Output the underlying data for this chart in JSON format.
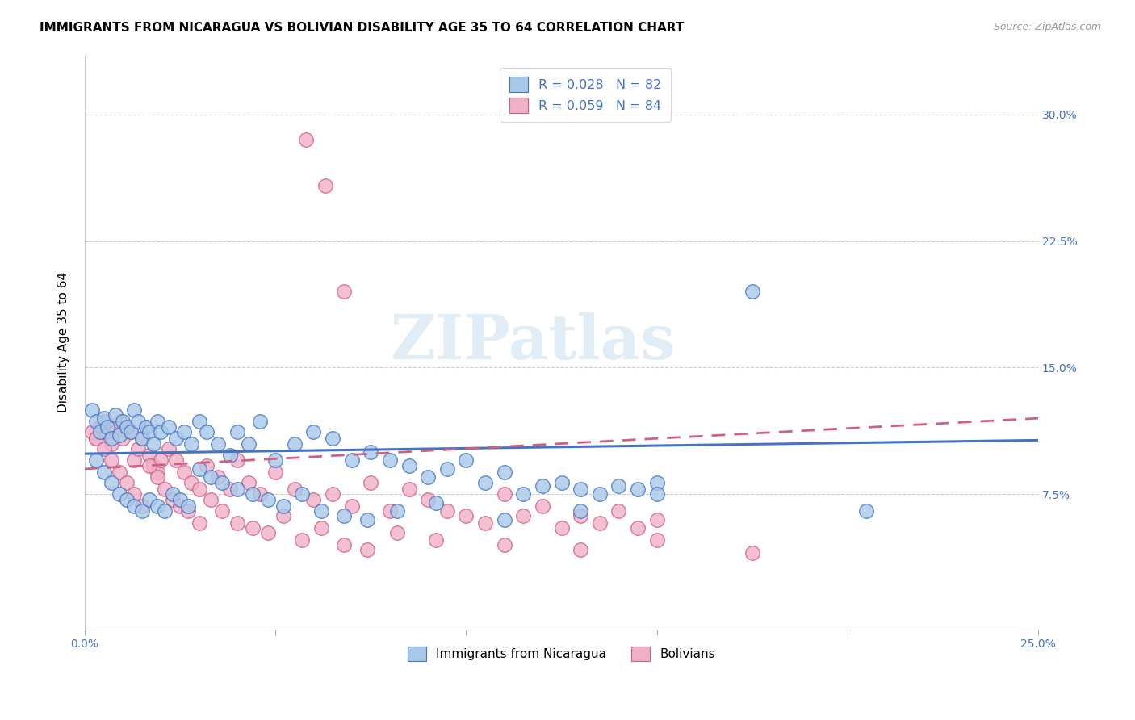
{
  "title": "IMMIGRANTS FROM NICARAGUA VS BOLIVIAN DISABILITY AGE 35 TO 64 CORRELATION CHART",
  "source": "Source: ZipAtlas.com",
  "ylabel": "Disability Age 35 to 64",
  "ytick_labels": [
    "7.5%",
    "15.0%",
    "22.5%",
    "30.0%"
  ],
  "ytick_values": [
    0.075,
    0.15,
    0.225,
    0.3
  ],
  "xlim": [
    0.0,
    0.25
  ],
  "ylim": [
    -0.005,
    0.335
  ],
  "legend_label1": "Immigrants from Nicaragua",
  "legend_label2": "Bolivians",
  "legend_r1": "R = 0.028",
  "legend_n1": "N = 82",
  "legend_r2": "R = 0.059",
  "legend_n2": "N = 84",
  "color_blue": "#a8c8e8",
  "color_pink": "#f0b0c8",
  "color_blue_line": "#4472c4",
  "color_pink_line": "#d06080",
  "color_axis_label": "#4472c4",
  "watermark": "ZIPatlas",
  "blue_x": [
    0.002,
    0.003,
    0.004,
    0.005,
    0.006,
    0.007,
    0.008,
    0.009,
    0.01,
    0.011,
    0.012,
    0.013,
    0.014,
    0.015,
    0.016,
    0.017,
    0.018,
    0.019,
    0.02,
    0.022,
    0.024,
    0.026,
    0.028,
    0.03,
    0.032,
    0.035,
    0.038,
    0.04,
    0.043,
    0.046,
    0.05,
    0.055,
    0.06,
    0.065,
    0.07,
    0.075,
    0.08,
    0.085,
    0.09,
    0.095,
    0.1,
    0.105,
    0.11,
    0.115,
    0.12,
    0.125,
    0.13,
    0.135,
    0.14,
    0.145,
    0.15,
    0.003,
    0.005,
    0.007,
    0.009,
    0.011,
    0.013,
    0.015,
    0.017,
    0.019,
    0.021,
    0.023,
    0.025,
    0.027,
    0.03,
    0.033,
    0.036,
    0.04,
    0.044,
    0.048,
    0.052,
    0.057,
    0.062,
    0.068,
    0.074,
    0.082,
    0.092,
    0.11,
    0.13,
    0.15,
    0.175,
    0.205
  ],
  "blue_y": [
    0.125,
    0.118,
    0.112,
    0.12,
    0.115,
    0.108,
    0.122,
    0.11,
    0.118,
    0.115,
    0.112,
    0.125,
    0.118,
    0.108,
    0.115,
    0.112,
    0.105,
    0.118,
    0.112,
    0.115,
    0.108,
    0.112,
    0.105,
    0.118,
    0.112,
    0.105,
    0.098,
    0.112,
    0.105,
    0.118,
    0.095,
    0.105,
    0.112,
    0.108,
    0.095,
    0.1,
    0.095,
    0.092,
    0.085,
    0.09,
    0.095,
    0.082,
    0.088,
    0.075,
    0.08,
    0.082,
    0.078,
    0.075,
    0.08,
    0.078,
    0.082,
    0.095,
    0.088,
    0.082,
    0.075,
    0.072,
    0.068,
    0.065,
    0.072,
    0.068,
    0.065,
    0.075,
    0.072,
    0.068,
    0.09,
    0.085,
    0.082,
    0.078,
    0.075,
    0.072,
    0.068,
    0.075,
    0.065,
    0.062,
    0.06,
    0.065,
    0.07,
    0.06,
    0.065,
    0.075,
    0.195,
    0.065
  ],
  "pink_x": [
    0.002,
    0.003,
    0.004,
    0.005,
    0.006,
    0.007,
    0.008,
    0.009,
    0.01,
    0.011,
    0.012,
    0.013,
    0.014,
    0.015,
    0.016,
    0.017,
    0.018,
    0.019,
    0.02,
    0.022,
    0.024,
    0.026,
    0.028,
    0.03,
    0.032,
    0.035,
    0.038,
    0.04,
    0.043,
    0.046,
    0.05,
    0.055,
    0.06,
    0.065,
    0.07,
    0.075,
    0.08,
    0.085,
    0.09,
    0.095,
    0.1,
    0.105,
    0.11,
    0.115,
    0.12,
    0.125,
    0.13,
    0.135,
    0.14,
    0.145,
    0.15,
    0.003,
    0.005,
    0.007,
    0.009,
    0.011,
    0.013,
    0.015,
    0.017,
    0.019,
    0.021,
    0.023,
    0.025,
    0.027,
    0.03,
    0.033,
    0.036,
    0.04,
    0.044,
    0.048,
    0.052,
    0.057,
    0.062,
    0.068,
    0.074,
    0.082,
    0.092,
    0.11,
    0.13,
    0.15,
    0.175,
    0.058,
    0.063,
    0.068
  ],
  "pink_y": [
    0.112,
    0.108,
    0.115,
    0.118,
    0.112,
    0.105,
    0.112,
    0.118,
    0.108,
    0.115,
    0.112,
    0.095,
    0.102,
    0.108,
    0.115,
    0.098,
    0.092,
    0.088,
    0.095,
    0.102,
    0.095,
    0.088,
    0.082,
    0.078,
    0.092,
    0.085,
    0.078,
    0.095,
    0.082,
    0.075,
    0.088,
    0.078,
    0.072,
    0.075,
    0.068,
    0.082,
    0.065,
    0.078,
    0.072,
    0.065,
    0.062,
    0.058,
    0.075,
    0.062,
    0.068,
    0.055,
    0.062,
    0.058,
    0.065,
    0.055,
    0.06,
    0.108,
    0.102,
    0.095,
    0.088,
    0.082,
    0.075,
    0.068,
    0.092,
    0.085,
    0.078,
    0.072,
    0.068,
    0.065,
    0.058,
    0.072,
    0.065,
    0.058,
    0.055,
    0.052,
    0.062,
    0.048,
    0.055,
    0.045,
    0.042,
    0.052,
    0.048,
    0.045,
    0.042,
    0.048,
    0.04,
    0.285,
    0.258,
    0.195
  ],
  "blue_trend_x": [
    0.0,
    0.25
  ],
  "blue_trend_y": [
    0.099,
    0.107
  ],
  "pink_trend_x": [
    0.0,
    0.25
  ],
  "pink_trend_y": [
    0.09,
    0.12
  ]
}
